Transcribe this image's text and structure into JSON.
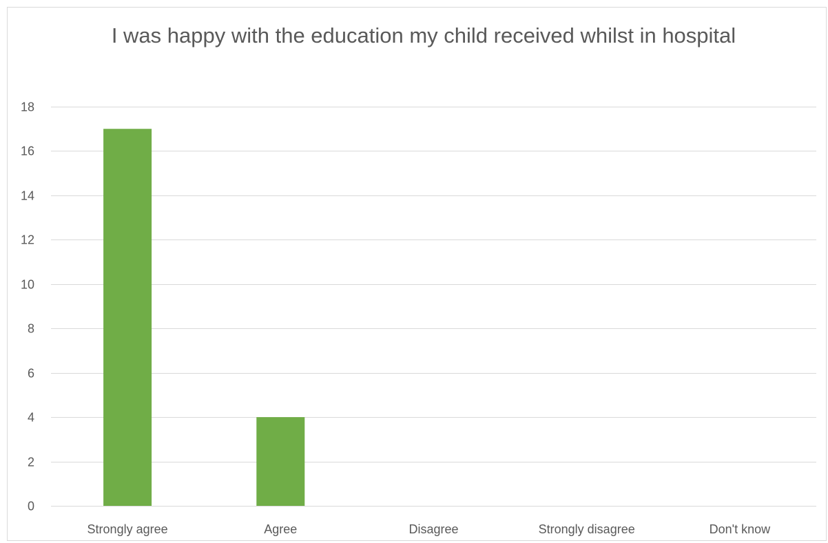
{
  "chart_data": {
    "type": "bar",
    "title": "I was happy with the education my child received whilst in hospital",
    "categories": [
      "Strongly agree",
      "Agree",
      "Disagree",
      "Strongly disagree",
      "Don't know"
    ],
    "values": [
      17,
      4,
      0,
      0,
      0
    ],
    "xlabel": "",
    "ylabel": "",
    "ylim": [
      0,
      18
    ],
    "yticks": [
      0,
      2,
      4,
      6,
      8,
      10,
      12,
      14,
      16,
      18
    ],
    "grid": true,
    "legend": "none",
    "bar_color": "#70ad47",
    "grid_color": "#d9d9d9"
  }
}
